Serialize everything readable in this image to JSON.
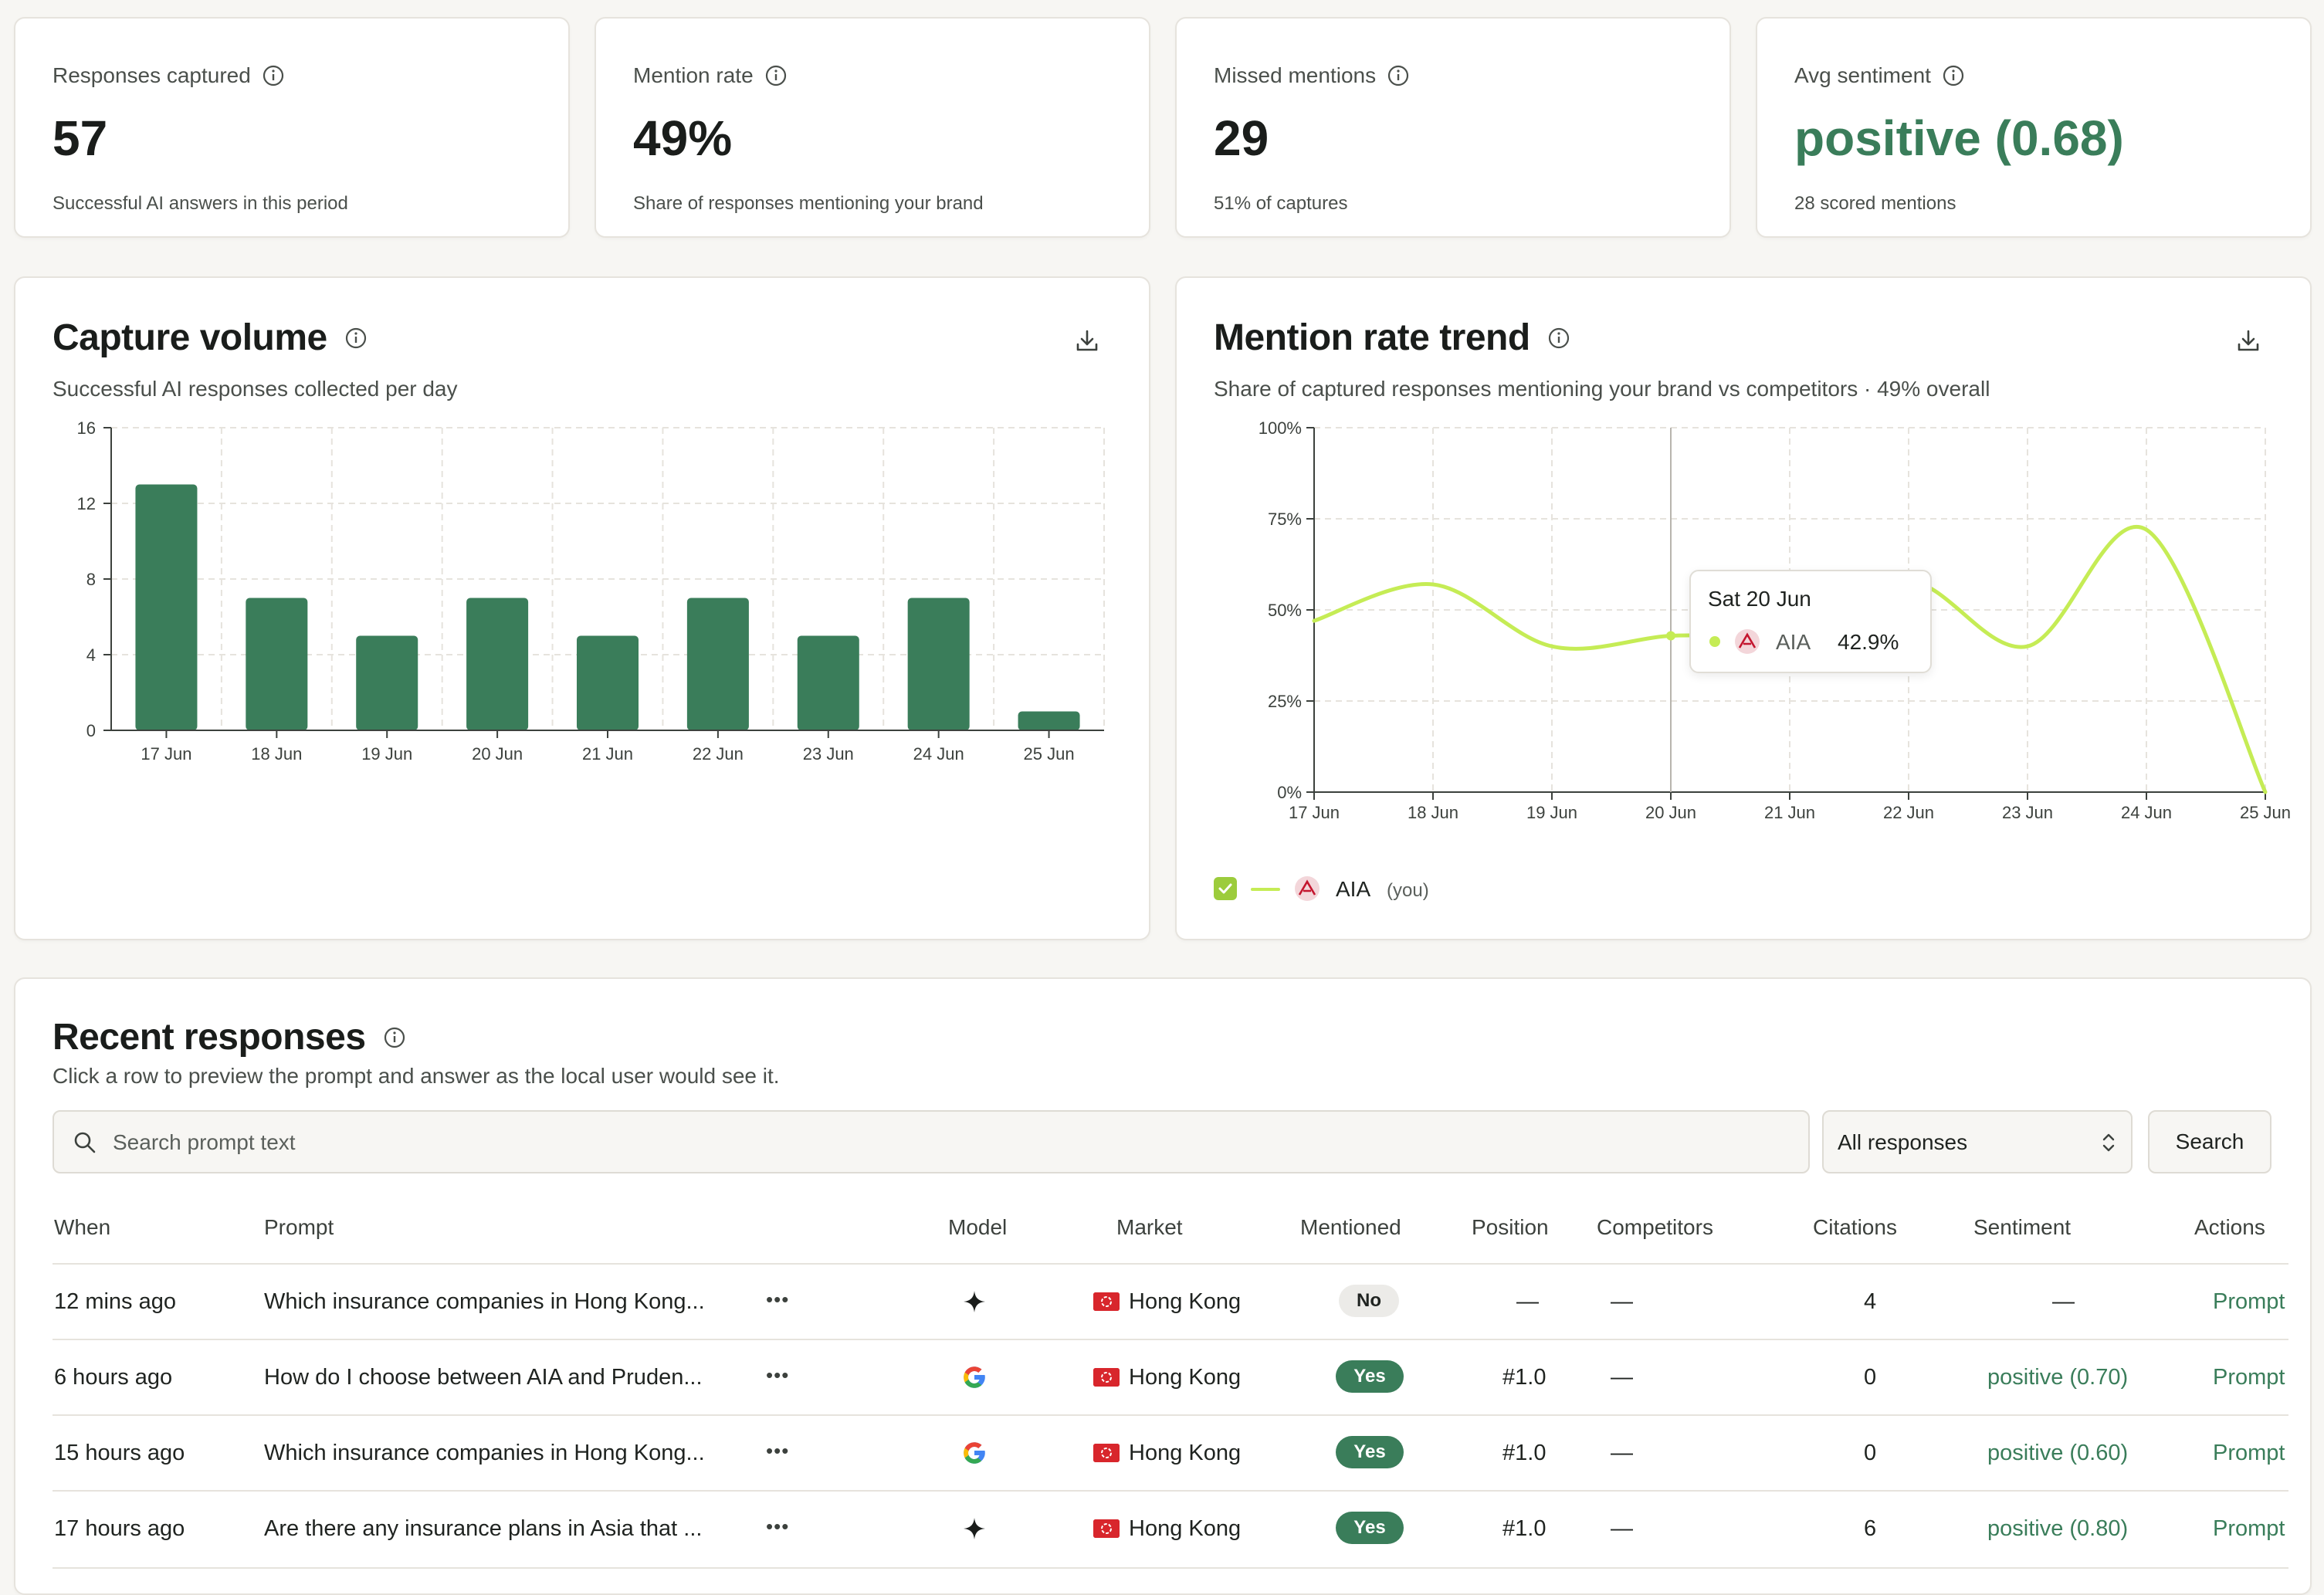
{
  "stats": [
    {
      "label": "Responses captured",
      "value": "57",
      "sub": "Successful AI answers in this period"
    },
    {
      "label": "Mention rate",
      "value": "49%",
      "sub": "Share of responses mentioning your brand"
    },
    {
      "label": "Missed mentions",
      "value": "29",
      "sub": "51% of captures"
    },
    {
      "label": "Avg sentiment",
      "value": "positive (0.68)",
      "sub": "28 scored mentions"
    }
  ],
  "capture_volume": {
    "title": "Capture volume",
    "subtitle": "Successful AI responses collected per day"
  },
  "mention_trend": {
    "title": "Mention rate trend",
    "subtitle": "Share of captured responses mentioning your brand vs competitors · 49% overall",
    "tooltip": {
      "date": "Sat 20 Jun",
      "brand": "AIA",
      "value": "42.9%"
    },
    "legend": {
      "brand": "AIA",
      "tag": "(you)"
    }
  },
  "chart_data": [
    {
      "type": "bar",
      "categories": [
        "17 Jun",
        "18 Jun",
        "19 Jun",
        "20 Jun",
        "21 Jun",
        "22 Jun",
        "23 Jun",
        "24 Jun",
        "25 Jun"
      ],
      "values": [
        13,
        7,
        5,
        7,
        5,
        7,
        5,
        7,
        1
      ],
      "yticks": [
        "0",
        "4",
        "8",
        "12",
        "16"
      ],
      "ylim": [
        0,
        16
      ],
      "grid": true,
      "color": "#3a7d5a"
    },
    {
      "type": "line",
      "categories": [
        "17 Jun",
        "18 Jun",
        "19 Jun",
        "20 Jun",
        "21 Jun",
        "22 Jun",
        "23 Jun",
        "24 Jun",
        "25 Jun"
      ],
      "series": [
        {
          "name": "AIA",
          "values": [
            47,
            57,
            40,
            42.9,
            44,
            58,
            40,
            72,
            0
          ]
        }
      ],
      "yticks": [
        "0%",
        "25%",
        "50%",
        "75%",
        "100%"
      ],
      "ylim": [
        0,
        100
      ],
      "grid": true,
      "color": "#c5ec55"
    }
  ],
  "recent": {
    "title": "Recent responses",
    "subtitle": "Click a row to preview the prompt and answer as the local user would see it.",
    "search_placeholder": "Search prompt text",
    "filter_value": "All responses",
    "search_button": "Search",
    "columns": [
      "When",
      "Prompt",
      "Model",
      "Market",
      "Mentioned",
      "Position",
      "Competitors",
      "Citations",
      "Sentiment",
      "Actions"
    ],
    "rows": [
      {
        "when": "12 mins ago",
        "prompt": "Which insurance companies in Hong Kong...",
        "model": "gemini",
        "market": "Hong Kong",
        "mentioned": "No",
        "position": "—",
        "competitors": "—",
        "citations": "4",
        "sentiment": "—",
        "action": "Prompt"
      },
      {
        "when": "6 hours ago",
        "prompt": "How do I choose between AIA and Pruden...",
        "model": "google",
        "market": "Hong Kong",
        "mentioned": "Yes",
        "position": "#1.0",
        "competitors": "—",
        "citations": "0",
        "sentiment": "positive (0.70)",
        "action": "Prompt"
      },
      {
        "when": "15 hours ago",
        "prompt": "Which insurance companies in Hong Kong...",
        "model": "google",
        "market": "Hong Kong",
        "mentioned": "Yes",
        "position": "#1.0",
        "competitors": "—",
        "citations": "0",
        "sentiment": "positive (0.60)",
        "action": "Prompt"
      },
      {
        "when": "17 hours ago",
        "prompt": "Are there any insurance plans in Asia that ...",
        "model": "gemini",
        "market": "Hong Kong",
        "mentioned": "Yes",
        "position": "#1.0",
        "competitors": "—",
        "citations": "6",
        "sentiment": "positive (0.80)",
        "action": "Prompt"
      }
    ]
  }
}
